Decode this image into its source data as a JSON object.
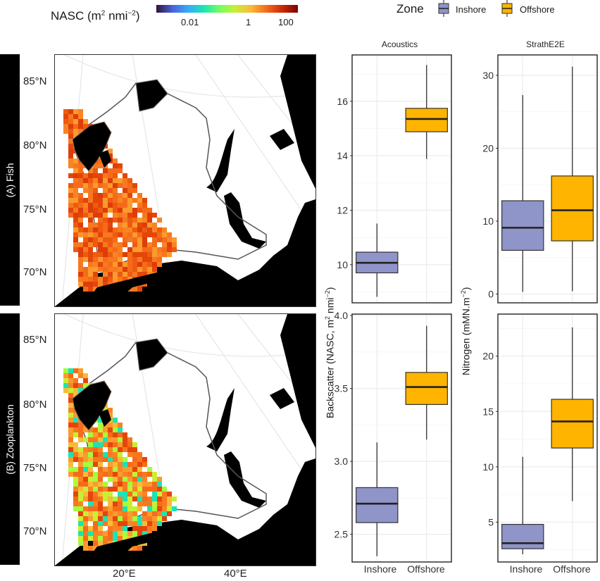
{
  "colorbar": {
    "title": "NASC (m",
    "title_sup1": "2",
    "title_mid": " nmi",
    "title_sup2": "−2",
    "title_end": ")",
    "ticks": [
      "0.01",
      "1",
      "100"
    ],
    "palette": [
      "#30123b",
      "#4662d7",
      "#36aaf9",
      "#1ae4b6",
      "#72fe5e",
      "#c8ef34",
      "#faba39",
      "#f66b19",
      "#ca2a04",
      "#7a0403"
    ]
  },
  "legend": {
    "title": "Zone",
    "items": [
      {
        "label": "Inshore",
        "color": "#8f94c9"
      },
      {
        "label": "Offshore",
        "color": "#ffb400"
      }
    ]
  },
  "maps": {
    "rows": [
      {
        "strip": "(A) Fish"
      },
      {
        "strip": "(B) Zooplankton"
      }
    ],
    "lat_ticks": [
      "85°N",
      "80°N",
      "75°N",
      "70°N"
    ],
    "lon_ticks": [
      "20°E",
      "40°E"
    ]
  },
  "chart_data": [
    {
      "type": "box",
      "facet": "Acoustics",
      "row": "(A) Fish",
      "categories": [
        "Inshore",
        "Offshore"
      ],
      "series": [
        {
          "name": "Inshore",
          "min": 8.82,
          "q1": 9.7,
          "median": 10.07,
          "q3": 10.46,
          "max": 11.51
        },
        {
          "name": "Offshore",
          "min": 13.88,
          "q1": 14.88,
          "median": 15.35,
          "q3": 15.74,
          "max": 17.33
        }
      ],
      "yticks": [
        10,
        12,
        14,
        16
      ],
      "ylim": [
        8.6,
        17.7
      ],
      "grid": true
    },
    {
      "type": "box",
      "facet": "StrathE2E",
      "row": "(A) Fish",
      "categories": [
        "Inshore",
        "Offshore"
      ],
      "series": [
        {
          "name": "Inshore",
          "min": 0.3,
          "q1": 6.0,
          "median": 9.1,
          "q3": 12.8,
          "max": 27.3
        },
        {
          "name": "Offshore",
          "min": 0.4,
          "q1": 7.3,
          "median": 11.5,
          "q3": 16.2,
          "max": 31.2
        }
      ],
      "yticks": [
        0,
        10,
        20,
        30
      ],
      "ylim": [
        -1.2,
        32.8
      ],
      "grid": true
    },
    {
      "type": "box",
      "facet": "Acoustics",
      "row": "(B) Zooplankton",
      "categories": [
        "Inshore",
        "Offshore"
      ],
      "series": [
        {
          "name": "Inshore",
          "min": 2.35,
          "q1": 2.58,
          "median": 2.71,
          "q3": 2.82,
          "max": 3.13
        },
        {
          "name": "Offshore",
          "min": 3.15,
          "q1": 3.39,
          "median": 3.51,
          "q3": 3.61,
          "max": 3.93
        }
      ],
      "yticks": [
        "2.5",
        "3.0",
        "3.5",
        "4.0"
      ],
      "ylim": [
        2.31,
        4.01
      ],
      "grid": true
    },
    {
      "type": "box",
      "facet": "StrathE2E",
      "row": "(B) Zooplankton",
      "categories": [
        "Inshore",
        "Offshore"
      ],
      "series": [
        {
          "name": "Inshore",
          "min": 2.1,
          "q1": 2.6,
          "median": 3.1,
          "q3": 4.8,
          "max": 10.9
        },
        {
          "name": "Offshore",
          "min": 6.9,
          "q1": 11.7,
          "median": 14.1,
          "q3": 16.1,
          "max": 22.6
        }
      ],
      "yticks": [
        5,
        10,
        15,
        20
      ],
      "ylim": [
        1.4,
        23.8
      ],
      "grid": true
    }
  ],
  "axes": {
    "acoustics_ylabel": "Backscatter (NASC, m",
    "acoustics_ylabel_sup1": "2",
    "acoustics_ylabel_mid": " nmi",
    "acoustics_ylabel_sup2": "−2",
    "acoustics_ylabel_end": ")",
    "strath_ylabel": "Nitrogen (mMN.m",
    "strath_ylabel_sup": "−2",
    "strath_ylabel_end": ")",
    "facet_titles": [
      "Acoustics",
      "StrathE2E"
    ],
    "xticks": [
      "Inshore",
      "Offshore"
    ]
  }
}
